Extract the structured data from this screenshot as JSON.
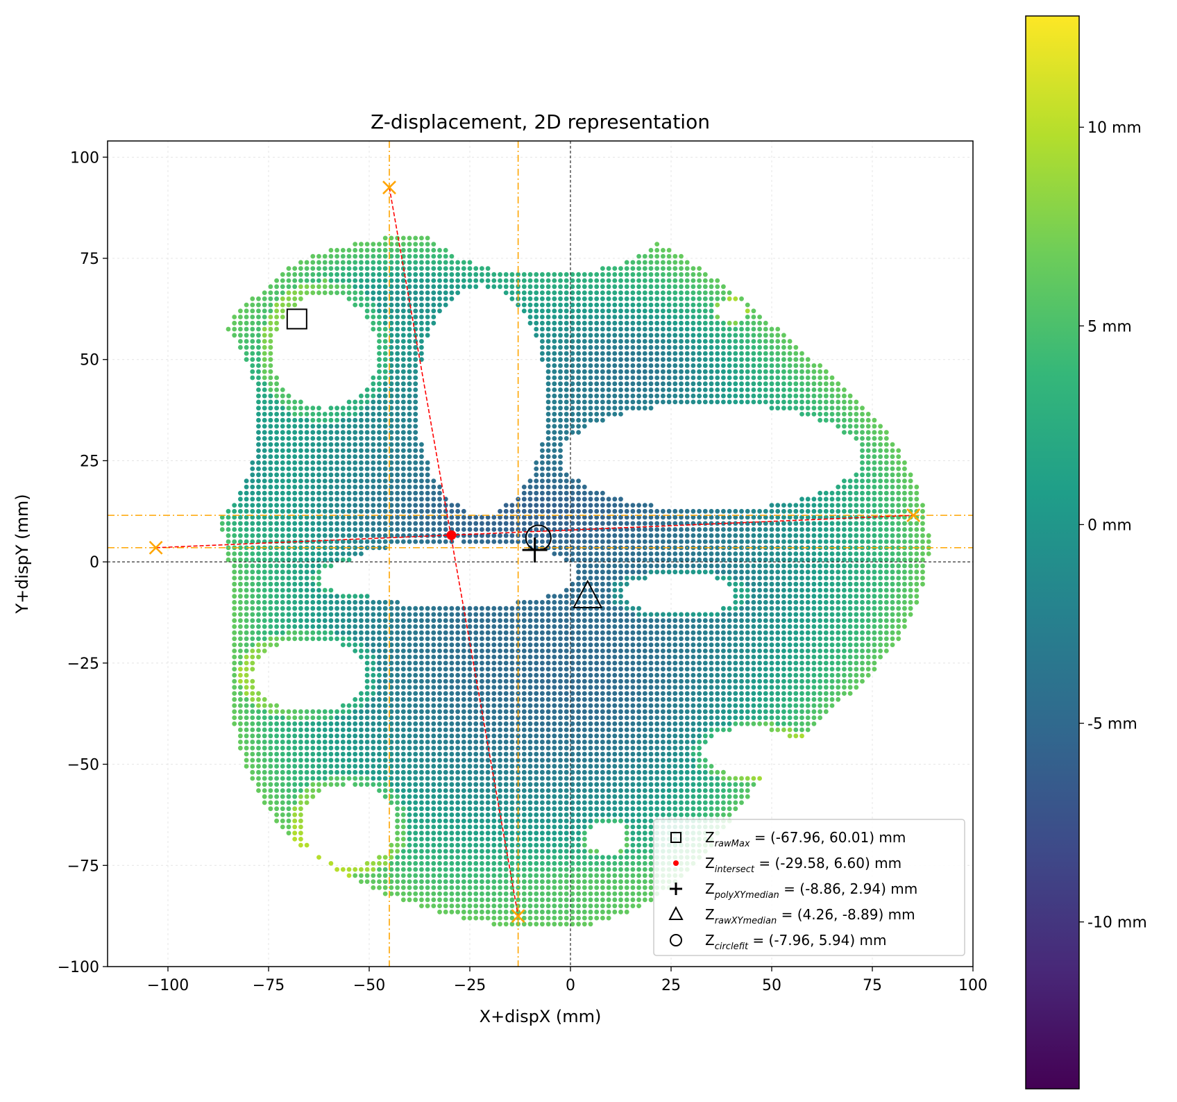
{
  "chart_data": {
    "type": "scatter",
    "title": "Z-displacement, 2D representation",
    "xlabel": "X+dispX (mm)",
    "ylabel": "Y+dispY (mm)",
    "xlim": [
      -115,
      100
    ],
    "ylim": [
      -100,
      104
    ],
    "grid": true,
    "xticks": [
      {
        "value": -100,
        "label": "−100"
      },
      {
        "value": -75,
        "label": "−75"
      },
      {
        "value": -50,
        "label": "−50"
      },
      {
        "value": -25,
        "label": "−25"
      },
      {
        "value": 0,
        "label": "0"
      },
      {
        "value": 25,
        "label": "25"
      },
      {
        "value": 50,
        "label": "50"
      },
      {
        "value": 75,
        "label": "75"
      },
      {
        "value": 100,
        "label": "100"
      }
    ],
    "yticks": [
      {
        "value": -100,
        "label": "−100"
      },
      {
        "value": -75,
        "label": "−75"
      },
      {
        "value": -50,
        "label": "−50"
      },
      {
        "value": -25,
        "label": "−25"
      },
      {
        "value": 0,
        "label": "0"
      },
      {
        "value": 25,
        "label": "25"
      },
      {
        "value": 50,
        "label": "50"
      },
      {
        "value": 75,
        "label": "75"
      },
      {
        "value": 100,
        "label": "100"
      }
    ],
    "colorbar": {
      "colormap": "viridis",
      "range": [
        -14.2,
        12.8
      ],
      "ticks": [
        {
          "value": 10,
          "label": "10 mm"
        },
        {
          "value": 5,
          "label": "5 mm"
        },
        {
          "value": 0,
          "label": "0 mm"
        },
        {
          "value": -5,
          "label": "-5 mm"
        },
        {
          "value": -10,
          "label": "-10 mm"
        }
      ]
    },
    "zero_lines": {
      "x": 0,
      "y": 0,
      "color": "#000000"
    },
    "extreme_points": [
      {
        "x": -45,
        "y": 92.5
      },
      {
        "x": -13,
        "y": -87.5
      },
      {
        "x": -103,
        "y": 3.5
      },
      {
        "x": 85.2,
        "y": 11.5
      }
    ],
    "guide_lines": {
      "vertical": [
        -45,
        -13
      ],
      "horizontal": [
        11.5,
        3.5
      ],
      "color": "#ffa500"
    },
    "connecting_lines": [
      {
        "from": [
          -45,
          92.5
        ],
        "to": [
          -13,
          -87.5
        ]
      },
      {
        "from": [
          -103,
          3.5
        ],
        "to": [
          85.2,
          11.5
        ]
      }
    ],
    "markers": {
      "rawMax": {
        "x": -67.96,
        "y": 60.01
      },
      "intersect": {
        "x": -29.58,
        "y": 6.6
      },
      "polyXYmedian": {
        "x": -8.86,
        "y": 2.94
      },
      "rawXYmedian": {
        "x": 4.26,
        "y": -8.89
      },
      "circlefit": {
        "x": -7.96,
        "y": 5.94
      }
    },
    "legend": {
      "position": "lower-right",
      "entries": [
        {
          "marker": "square",
          "main": "Z",
          "sub": "rawMax",
          "text": " = (-67.96, 60.01) mm"
        },
        {
          "marker": "red-dot",
          "main": "Z",
          "sub": "intersect",
          "text": " = (-29.58, 6.60) mm"
        },
        {
          "marker": "plus",
          "main": "Z",
          "sub": "polyXYmedian",
          "text": " = (-8.86, 2.94) mm"
        },
        {
          "marker": "triangle",
          "main": "Z",
          "sub": "rawXYmedian",
          "text": " = (4.26, -8.89) mm"
        },
        {
          "marker": "circle",
          "main": "Z",
          "sub": "circlefit",
          "text": " = (-7.96, 5.94) mm"
        }
      ]
    },
    "surface": {
      "grid_step": 1.5,
      "outer_radius": 87,
      "center": [
        -8,
        0
      ],
      "holes": [
        {
          "cx": -61,
          "cy": 52,
          "rx": 13,
          "ry": 14
        },
        {
          "cx": -65,
          "cy": -28,
          "rx": 14,
          "ry": 9
        },
        {
          "cx": -55,
          "cy": -65,
          "rx": 12,
          "ry": 10
        },
        {
          "cx": 45,
          "cy": -47,
          "rx": 12,
          "ry": 6
        },
        {
          "cx": 9,
          "cy": -68,
          "rx": 5,
          "ry": 4
        },
        {
          "cx": 40,
          "cy": 62,
          "rx": 3.5,
          "ry": 2.5
        },
        {
          "cx": 27,
          "cy": -8,
          "rx": 14,
          "ry": 5
        },
        {
          "cx": -52,
          "cy": -4,
          "rx": 10,
          "ry": 4
        }
      ],
      "gaps": [
        {
          "cx": 35,
          "cy": 26,
          "rx": 37,
          "ry": 13
        },
        {
          "cx": -28,
          "cy": -3,
          "rx": 30,
          "ry": 8
        },
        {
          "cx": -22,
          "cy": 40,
          "rx": 16,
          "ry": 28
        },
        {
          "cx": -6,
          "cy": 85,
          "rx": 30,
          "ry": 14
        },
        {
          "cx": -94,
          "cy": 35,
          "rx": 16,
          "ry": 26
        },
        {
          "cx": -90,
          "cy": 82,
          "rx": 20,
          "ry": 20
        }
      ],
      "value_zones": [
        {
          "cx": 0,
          "cy": -30,
          "rx": 45,
          "ry": 30,
          "value": -5
        },
        {
          "cx": -10,
          "cy": 12,
          "rx": 45,
          "ry": 10,
          "value": -6
        },
        {
          "cx": 15,
          "cy": 48,
          "rx": 25,
          "ry": 15,
          "value": -4
        },
        {
          "cx": -40,
          "cy": 65,
          "rx": 25,
          "ry": 10,
          "value": -1
        },
        {
          "cx": -80,
          "cy": 25,
          "rx": 10,
          "ry": 20,
          "value": -1
        },
        {
          "cx": 5,
          "cy": -80,
          "rx": 30,
          "ry": 8,
          "value": 6
        }
      ]
    }
  }
}
